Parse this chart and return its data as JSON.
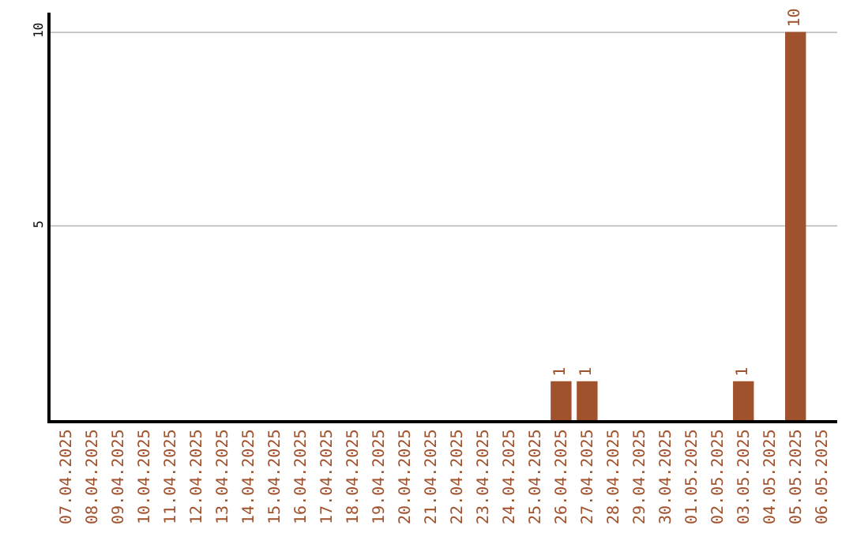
{
  "chart_data": {
    "type": "bar",
    "categories": [
      "07.04.2025",
      "08.04.2025",
      "09.04.2025",
      "10.04.2025",
      "11.04.2025",
      "12.04.2025",
      "13.04.2025",
      "14.04.2025",
      "15.04.2025",
      "16.04.2025",
      "17.04.2025",
      "18.04.2025",
      "19.04.2025",
      "20.04.2025",
      "21.04.2025",
      "22.04.2025",
      "23.04.2025",
      "24.04.2025",
      "25.04.2025",
      "26.04.2025",
      "27.04.2025",
      "28.04.2025",
      "29.04.2025",
      "30.04.2025",
      "01.05.2025",
      "02.05.2025",
      "03.05.2025",
      "04.05.2025",
      "05.05.2025",
      "06.05.2025"
    ],
    "values": [
      0,
      0,
      0,
      0,
      0,
      0,
      0,
      0,
      0,
      0,
      0,
      0,
      0,
      0,
      0,
      0,
      0,
      0,
      0,
      1,
      1,
      0,
      0,
      0,
      0,
      0,
      1,
      0,
      10,
      0
    ],
    "value_labels": [
      null,
      null,
      null,
      null,
      null,
      null,
      null,
      null,
      null,
      null,
      null,
      null,
      null,
      null,
      null,
      null,
      null,
      null,
      null,
      "1",
      "1",
      null,
      null,
      null,
      null,
      null,
      "1",
      null,
      "10",
      null
    ],
    "color": "#a0522d",
    "ylim": [
      0,
      10.5
    ],
    "yticks": [
      5,
      10
    ],
    "grid": "y",
    "legend": false
  }
}
